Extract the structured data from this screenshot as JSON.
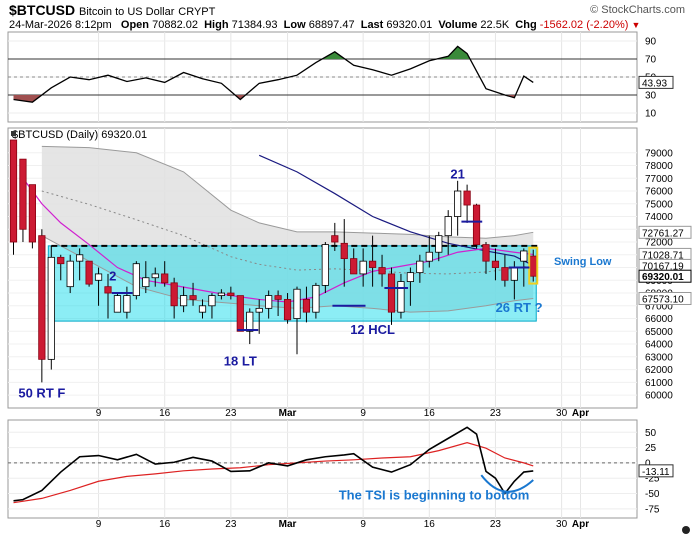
{
  "header": {
    "symbol": "$BTCUSD",
    "name": "Bitcoin to US Dollar",
    "exchange": "CRYPT",
    "credit": "© StockCharts.com",
    "date": "24-Mar-2026 8:12pm",
    "open_label": "Open",
    "open": "70882.02",
    "high_label": "High",
    "high": "71384.93",
    "low_label": "Low",
    "low": "68897.47",
    "last_label": "Last",
    "last": "69320.01",
    "volume_label": "Volume",
    "volume": "22.5K",
    "chg_label": "Chg",
    "chg": "-1562.02 (-2.20%)",
    "chg_color": "#cc0000"
  },
  "chart_data": {
    "type": "candlestick",
    "price_title": "$BTCUSD (Daily) 69320.01",
    "x_labels": [
      {
        "label": "9",
        "day": 9
      },
      {
        "label": "16",
        "day": 16
      },
      {
        "label": "23",
        "day": 23
      },
      {
        "label": "Mar",
        "day": 29
      },
      {
        "label": "9",
        "day": 37
      },
      {
        "label": "16",
        "day": 44
      },
      {
        "label": "23",
        "day": 51
      },
      {
        "label": "30",
        "day": 58
      },
      {
        "label": "Apr",
        "day": 60
      }
    ],
    "price_ticks": [
      60000,
      61000,
      62000,
      63000,
      64000,
      65000,
      66000,
      67000,
      68000,
      69000,
      70000,
      71000,
      72000,
      73000,
      74000,
      75000,
      76000,
      77000,
      78000,
      79000
    ],
    "price_range": [
      59300,
      80000
    ],
    "candles": [
      [
        0,
        80000,
        80000,
        71000,
        72000
      ],
      [
        1,
        78500,
        78500,
        72000,
        73000
      ],
      [
        2,
        76500,
        76500,
        71500,
        72000
      ],
      [
        3,
        72500,
        73000,
        61000,
        62800
      ],
      [
        4,
        62800,
        71700,
        62000,
        70800
      ],
      [
        5,
        70800,
        71000,
        69000,
        70300
      ],
      [
        6,
        68500,
        71000,
        68000,
        70500
      ],
      [
        7,
        70500,
        71500,
        69000,
        71000
      ],
      [
        8,
        70500,
        70500,
        68500,
        68700
      ],
      [
        9,
        69000,
        70000,
        67000,
        69500
      ],
      [
        10,
        68500,
        69500,
        66000,
        68000
      ],
      [
        11,
        66500,
        68000,
        66500,
        67800
      ],
      [
        12,
        66500,
        68500,
        66000,
        67800
      ],
      [
        13,
        67800,
        70500,
        67500,
        70300
      ],
      [
        14,
        68500,
        70500,
        68000,
        69200
      ],
      [
        15,
        69200,
        70000,
        68500,
        69500
      ],
      [
        16,
        69500,
        70500,
        68500,
        68800
      ],
      [
        17,
        68800,
        69200,
        66000,
        67000
      ],
      [
        18,
        67000,
        68500,
        66500,
        67800
      ],
      [
        19,
        67800,
        68800,
        67000,
        67500
      ],
      [
        20,
        66500,
        67500,
        66000,
        67000
      ],
      [
        21,
        67000,
        68000,
        66000,
        67800
      ],
      [
        22,
        67800,
        68300,
        67500,
        68000
      ],
      [
        23,
        68000,
        68500,
        67500,
        67800
      ],
      [
        24,
        67800,
        67800,
        65000,
        65000
      ],
      [
        25,
        65000,
        66800,
        64000,
        66500
      ],
      [
        26,
        66500,
        67500,
        64800,
        66800
      ],
      [
        27,
        66800,
        68200,
        66000,
        67800
      ],
      [
        28,
        67800,
        68200,
        66200,
        67500
      ],
      [
        29,
        67500,
        68000,
        65600,
        65900
      ],
      [
        30,
        66000,
        68500,
        63200,
        68300
      ],
      [
        31,
        67500,
        68500,
        65700,
        66500
      ],
      [
        32,
        66500,
        68800,
        66000,
        68600
      ],
      [
        33,
        68600,
        72000,
        68000,
        71800
      ],
      [
        34,
        72500,
        73500,
        71300,
        72000
      ],
      [
        35,
        71900,
        73800,
        68500,
        70700
      ],
      [
        36,
        70700,
        71500,
        69500,
        69500
      ],
      [
        37,
        69500,
        71500,
        68500,
        70500
      ],
      [
        38,
        70500,
        72500,
        68500,
        70000
      ],
      [
        39,
        70000,
        71000,
        68500,
        69500
      ],
      [
        40,
        69500,
        70000,
        65500,
        66500
      ],
      [
        41,
        66500,
        69500,
        66000,
        68900
      ],
      [
        42,
        68900,
        70000,
        67000,
        69600
      ],
      [
        43,
        69600,
        71000,
        68800,
        70500
      ],
      [
        44,
        70500,
        72500,
        70000,
        71200
      ],
      [
        45,
        71200,
        72800,
        70500,
        72500
      ],
      [
        46,
        72500,
        74500,
        71000,
        74000
      ],
      [
        47,
        74000,
        76800,
        72500,
        76000
      ],
      [
        48,
        76000,
        76500,
        73500,
        74900
      ],
      [
        49,
        74900,
        75000,
        71500,
        71800
      ],
      [
        50,
        71800,
        72000,
        69500,
        70500
      ],
      [
        51,
        70500,
        71500,
        69000,
        70000
      ],
      [
        52,
        70000,
        71000,
        68500,
        69000
      ],
      [
        53,
        69000,
        70500,
        67500,
        70000
      ],
      [
        54,
        70500,
        71500,
        68500,
        71300
      ],
      [
        55,
        70900,
        71400,
        68900,
        69320
      ]
    ],
    "series": [
      {
        "name": "SMA short",
        "color": "#d020d0",
        "values": [
          [
            1,
            77000
          ],
          [
            3,
            75000
          ],
          [
            5,
            73500
          ],
          [
            8,
            71800
          ],
          [
            11,
            70000
          ],
          [
            14,
            69000
          ],
          [
            17,
            68600
          ],
          [
            20,
            68200
          ],
          [
            23,
            67800
          ],
          [
            26,
            67500
          ],
          [
            29,
            67300
          ],
          [
            32,
            67700
          ],
          [
            35,
            68800
          ],
          [
            38,
            69700
          ],
          [
            41,
            70100
          ],
          [
            44,
            70500
          ],
          [
            47,
            71200
          ],
          [
            50,
            71500
          ],
          [
            53,
            71200
          ],
          [
            55,
            71028.71
          ]
        ]
      },
      {
        "name": "SMA long",
        "color": "#1a1a80",
        "values": [
          [
            26,
            78800
          ],
          [
            30,
            77500
          ],
          [
            34,
            75800
          ],
          [
            38,
            74000
          ],
          [
            42,
            72800
          ],
          [
            46,
            71900
          ],
          [
            50,
            71300
          ],
          [
            53,
            70900
          ],
          [
            55,
            70167.19
          ]
        ]
      },
      {
        "name": "Band upper",
        "color": "#aaaaaa",
        "values": [
          [
            3,
            79500
          ],
          [
            8,
            79400
          ],
          [
            13,
            79000
          ],
          [
            18,
            77500
          ],
          [
            23,
            74500
          ],
          [
            26,
            73500
          ],
          [
            30,
            72800
          ],
          [
            34,
            72800
          ],
          [
            38,
            72700
          ],
          [
            42,
            72600
          ],
          [
            46,
            72400
          ],
          [
            50,
            72300
          ],
          [
            53,
            72500
          ],
          [
            55,
            72761.27
          ]
        ]
      },
      {
        "name": "Band lower",
        "color": "#aaaaaa",
        "values": [
          [
            3,
            72500
          ],
          [
            8,
            70500
          ],
          [
            13,
            68500
          ],
          [
            18,
            67500
          ],
          [
            23,
            67200
          ],
          [
            26,
            67000
          ],
          [
            30,
            66800
          ],
          [
            34,
            67000
          ],
          [
            38,
            66800
          ],
          [
            42,
            66500
          ],
          [
            46,
            66600
          ],
          [
            50,
            67000
          ],
          [
            53,
            67400
          ],
          [
            55,
            67573.1
          ]
        ]
      }
    ],
    "highlight_zone": {
      "from_day": 4,
      "to_day": 55,
      "low": 65800,
      "high": 71700,
      "color": "#00d8e8"
    },
    "dashed_level": 71700,
    "right_labels": [
      {
        "value": 72761.27,
        "text": "72761.27",
        "kind": "plain"
      },
      {
        "value": 71028.71,
        "text": "71028.71",
        "kind": "plain"
      },
      {
        "value": 70167.19,
        "text": "70167.19",
        "kind": "plain"
      },
      {
        "value": 69320.01,
        "text": "69320.01",
        "kind": "bold"
      },
      {
        "value": 67573.1,
        "text": "67573.10",
        "kind": "plain"
      }
    ],
    "annotations": [
      {
        "text": "50 RT F",
        "day": 3,
        "price": 59800
      },
      {
        "text": "2",
        "day": 10.5,
        "price": 69000
      },
      {
        "text": "18 LT",
        "day": 24,
        "price": 62300
      },
      {
        "text": "12 HCL",
        "day": 38,
        "price": 64800
      },
      {
        "text": "21",
        "day": 47,
        "price": 77000
      },
      {
        "text": "Swing Low",
        "day": 57.2,
        "price": 70200
      },
      {
        "text": "26 RT ?",
        "day": 53.5,
        "price": 66500
      }
    ],
    "marks": [
      {
        "day": 11.5,
        "price": 68000,
        "w": 2.2
      },
      {
        "day": 24.8,
        "price": 65100,
        "w": 2.2
      },
      {
        "day": 35.5,
        "price": 67000,
        "w": 3.5
      },
      {
        "day": 40.5,
        "price": 68400,
        "w": 2.5
      },
      {
        "day": 48.5,
        "price": 73600,
        "w": 2.2
      },
      {
        "day": 53.5,
        "price": 70000,
        "w": 2.2
      }
    ],
    "osc_top": {
      "name": "RSI",
      "ticks": [
        10,
        30,
        50,
        70,
        90
      ],
      "range": [
        0,
        100
      ],
      "upper": 70,
      "lower": 30,
      "mid": 50,
      "current_label": "43.93",
      "values": [
        [
          0,
          25
        ],
        [
          2,
          22
        ],
        [
          4,
          38
        ],
        [
          6,
          50
        ],
        [
          8,
          47
        ],
        [
          10,
          52
        ],
        [
          12,
          45
        ],
        [
          14,
          49
        ],
        [
          16,
          44
        ],
        [
          18,
          55
        ],
        [
          20,
          48
        ],
        [
          22,
          43
        ],
        [
          23,
          34
        ],
        [
          24,
          25
        ],
        [
          26,
          43
        ],
        [
          28,
          47
        ],
        [
          30,
          52
        ],
        [
          32,
          66
        ],
        [
          34,
          78
        ],
        [
          36,
          63
        ],
        [
          38,
          58
        ],
        [
          40,
          52
        ],
        [
          42,
          59
        ],
        [
          44,
          68
        ],
        [
          46,
          73
        ],
        [
          47,
          84
        ],
        [
          48,
          76
        ],
        [
          50,
          37
        ],
        [
          52,
          30
        ],
        [
          53,
          27
        ],
        [
          54,
          51
        ],
        [
          55,
          44
        ]
      ]
    },
    "osc_bottom": {
      "name": "TSI",
      "ticks": [
        -75,
        -50,
        -25,
        0,
        25,
        50
      ],
      "range": [
        -90,
        70
      ],
      "zero": 0,
      "current_label": "-13.11",
      "tsi_values": [
        [
          0,
          -62
        ],
        [
          1,
          -60
        ],
        [
          3,
          -45
        ],
        [
          5,
          -15
        ],
        [
          7,
          10
        ],
        [
          9,
          12
        ],
        [
          11,
          5
        ],
        [
          13,
          14
        ],
        [
          15,
          -2
        ],
        [
          17,
          1
        ],
        [
          19,
          9
        ],
        [
          21,
          3
        ],
        [
          23,
          -14
        ],
        [
          25,
          -13
        ],
        [
          27,
          0
        ],
        [
          29,
          -5
        ],
        [
          31,
          5
        ],
        [
          33,
          10
        ],
        [
          35,
          13
        ],
        [
          36,
          15
        ],
        [
          38,
          -7
        ],
        [
          40,
          -15
        ],
        [
          42,
          -3
        ],
        [
          44,
          22
        ],
        [
          46,
          40
        ],
        [
          48,
          58
        ],
        [
          49,
          47
        ],
        [
          50,
          -14
        ],
        [
          51,
          -25
        ],
        [
          52,
          -50
        ],
        [
          53,
          -30
        ],
        [
          54,
          -15
        ],
        [
          55,
          -13.11
        ]
      ],
      "signal_values": [
        [
          0,
          -65
        ],
        [
          3,
          -58
        ],
        [
          6,
          -45
        ],
        [
          9,
          -30
        ],
        [
          12,
          -22
        ],
        [
          15,
          -18
        ],
        [
          18,
          -13
        ],
        [
          21,
          -10
        ],
        [
          24,
          -8
        ],
        [
          27,
          -3
        ],
        [
          30,
          0
        ],
        [
          33,
          3
        ],
        [
          36,
          5
        ],
        [
          39,
          8
        ],
        [
          42,
          10
        ],
        [
          45,
          20
        ],
        [
          48,
          33
        ],
        [
          50,
          24
        ],
        [
          52,
          8
        ],
        [
          54,
          0
        ],
        [
          55,
          -5
        ]
      ],
      "annotation": "The TSI is beginning to bottom"
    }
  }
}
